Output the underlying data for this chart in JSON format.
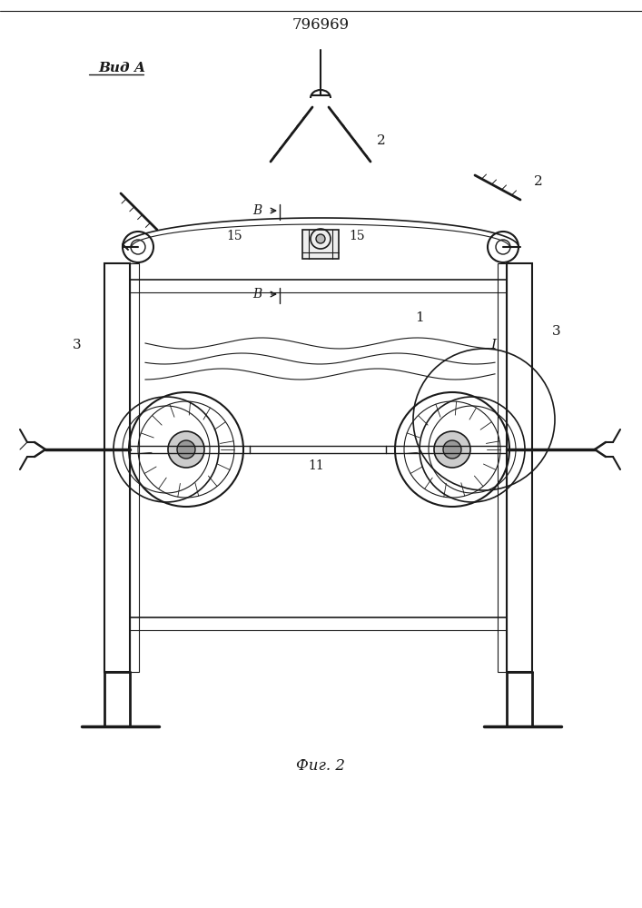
{
  "title": "796969",
  "view_label": "Вид А",
  "fig_label": "Фиг. 2",
  "bg_color": "#ffffff",
  "line_color": "#1a1a1a"
}
